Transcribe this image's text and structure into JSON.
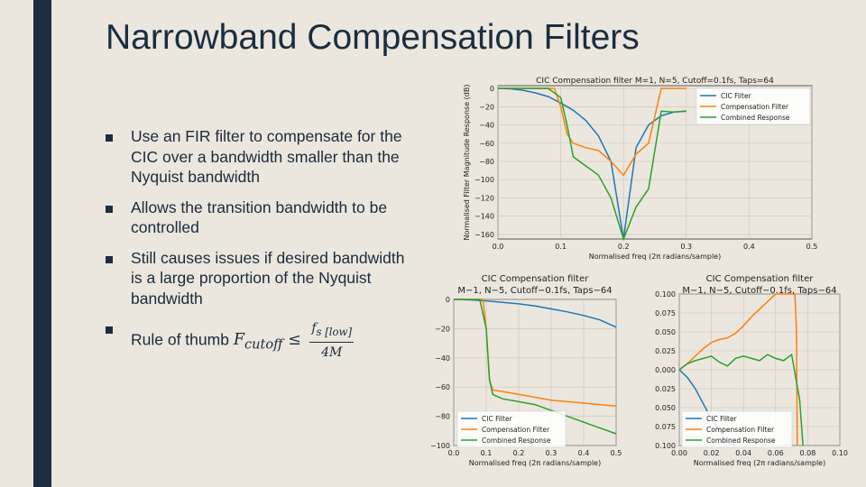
{
  "slide": {
    "title": "Narrowband Compensation Filters",
    "bullets": [
      "Use an FIR filter to compensate for the CIC over a bandwidth smaller than the Nyquist bandwidth",
      "Allows the transition bandwidth to be controlled",
      "Still causes issues if desired bandwidth is a large proportion of the Nyquist bandwidth"
    ],
    "rule": {
      "prefix": "Rule of thumb",
      "lhs": "F",
      "lhs_sub": "cutoff",
      "op": "≤",
      "num": "f",
      "num_sub": "s [low]",
      "den": "4M"
    }
  },
  "colors": {
    "cic": "#1f77b4",
    "comp": "#ff7f0e",
    "combined": "#2ca02c",
    "sidebar": "#1c2d40",
    "background": "#ebe7de"
  },
  "chart_data": [
    {
      "type": "line",
      "title": "CIC Compensation filter M=1, N=5, Cutoff=0.1fs, Taps=64",
      "xlabel": "Normalised freq (2π radians/sample)",
      "ylabel": "Normalised Filter Magnitude Response (dB)",
      "xlim": [
        0,
        0.5
      ],
      "ylim": [
        -165,
        3
      ],
      "xticks": [
        "0.0",
        "0.1",
        "0.2",
        "0.3",
        "0.4",
        "0.5"
      ],
      "yticks": [
        "0",
        "−20",
        "−40",
        "−60",
        "−80",
        "−100",
        "−120",
        "−140",
        "−160"
      ],
      "grid": true,
      "legend": "top-right",
      "series": [
        {
          "name": "CIC Filter",
          "x": [
            0,
            0.02,
            0.04,
            0.06,
            0.08,
            0.1,
            0.12,
            0.14,
            0.16,
            0.18,
            0.2,
            0.22,
            0.24,
            0.26,
            0.28,
            0.3
          ],
          "y": [
            0,
            -0.5,
            -2,
            -5,
            -9,
            -16,
            -24,
            -35,
            -52,
            -80,
            -165,
            -65,
            -40,
            -30,
            -26,
            -25
          ]
        },
        {
          "name": "Compensation Filter",
          "x": [
            0,
            0.09,
            0.1,
            0.11,
            0.12,
            0.14,
            0.16,
            0.18,
            0.2,
            0.22,
            0.24,
            0.26,
            0.28,
            0.3
          ],
          "y": [
            0,
            0,
            -20,
            -50,
            -60,
            -65,
            -68,
            -80,
            -95,
            -72,
            -60,
            0,
            0,
            0
          ]
        },
        {
          "name": "Combined Response",
          "x": [
            0,
            0.08,
            0.1,
            0.11,
            0.12,
            0.14,
            0.16,
            0.18,
            0.2,
            0.22,
            0.24,
            0.26,
            0.28,
            0.3
          ],
          "y": [
            0,
            0,
            -10,
            -40,
            -75,
            -85,
            -95,
            -120,
            -165,
            -130,
            -110,
            -25,
            -26,
            -25
          ]
        }
      ]
    },
    {
      "type": "line",
      "title": "CIC Compensation filter",
      "subtitle": "M−1, N−5, Cutoff−0.1fs, Taps−64",
      "xlabel": "Normalised freq (2π radians/sample)",
      "ylabel": "",
      "xlim": [
        0,
        0.5
      ],
      "ylim": [
        -100,
        0
      ],
      "xticks": [
        "0.0",
        "0.1",
        "0.2",
        "0.3",
        "0.4",
        "0.5"
      ],
      "yticks": [
        "0",
        "−20",
        "−40",
        "−60",
        "−80",
        "−100"
      ],
      "grid": true,
      "legend": "bottom-left",
      "series": [
        {
          "name": "CIC Filter",
          "x": [
            0,
            0.05,
            0.1,
            0.15,
            0.2,
            0.25,
            0.3,
            0.35,
            0.4,
            0.45,
            0.5
          ],
          "y": [
            0,
            -0.3,
            -1,
            -2,
            -3,
            -4.5,
            -6.5,
            -8.5,
            -11,
            -14,
            -19
          ]
        },
        {
          "name": "Compensation Filter",
          "x": [
            0,
            0.05,
            0.09,
            0.1,
            0.11,
            0.12,
            0.15,
            0.2,
            0.25,
            0.3,
            0.35,
            0.4,
            0.45,
            0.5
          ],
          "y": [
            0,
            0,
            0,
            -20,
            -55,
            -62,
            -63,
            -65,
            -67,
            -69,
            -70,
            -71,
            -72,
            -73
          ]
        },
        {
          "name": "Combined Response",
          "x": [
            0,
            0.05,
            0.08,
            0.1,
            0.11,
            0.12,
            0.15,
            0.2,
            0.25,
            0.3,
            0.35,
            0.4,
            0.45,
            0.5
          ],
          "y": [
            0,
            0,
            0,
            -20,
            -55,
            -65,
            -68,
            -70,
            -72,
            -76,
            -80,
            -84,
            -88,
            -92
          ]
        }
      ]
    },
    {
      "type": "line",
      "title": "CIC Compensation filter",
      "subtitle": "M−1, N−5, Cutoff−0.1fs, Taps−64",
      "xlabel": "Normalised freq (2π radians/sample)",
      "ylabel": "",
      "xlim": [
        0,
        0.1
      ],
      "ylim": [
        -0.1,
        0.1
      ],
      "xticks": [
        "0.00",
        "0.02",
        "0.04",
        "0.06",
        "0.08",
        "0.10"
      ],
      "yticks": [
        "0.100",
        "0.075",
        "0.050",
        "0.025",
        "0.000",
        "0.025",
        "0.050",
        "0.075",
        "0.100"
      ],
      "grid": true,
      "legend": "bottom-left",
      "series": [
        {
          "name": "CIC Filter",
          "x": [
            0,
            0.005,
            0.01,
            0.015,
            0.02,
            0.025,
            0.03,
            0.035
          ],
          "y": [
            0,
            -0.01,
            -0.025,
            -0.045,
            -0.065,
            -0.08,
            -0.095,
            -0.105
          ]
        },
        {
          "name": "Compensation Filter",
          "x": [
            0,
            0.005,
            0.01,
            0.015,
            0.02,
            0.025,
            0.03,
            0.035,
            0.04,
            0.045,
            0.05,
            0.055,
            0.06,
            0.065,
            0.07,
            0.072,
            0.073,
            0.0735
          ],
          "y": [
            0,
            0.008,
            0.018,
            0.028,
            0.036,
            0.04,
            0.042,
            0.048,
            0.058,
            0.07,
            0.08,
            0.09,
            0.1,
            0.11,
            0.12,
            0.12,
            0.05,
            -0.12
          ]
        },
        {
          "name": "Combined Response",
          "x": [
            0,
            0.005,
            0.01,
            0.015,
            0.02,
            0.025,
            0.03,
            0.035,
            0.04,
            0.045,
            0.05,
            0.055,
            0.06,
            0.065,
            0.07,
            0.075,
            0.077
          ],
          "y": [
            0,
            0.008,
            0.012,
            0.015,
            0.018,
            0.01,
            0.005,
            0.015,
            0.018,
            0.015,
            0.012,
            0.02,
            0.015,
            0.012,
            0.02,
            -0.04,
            -0.12
          ]
        }
      ]
    }
  ]
}
